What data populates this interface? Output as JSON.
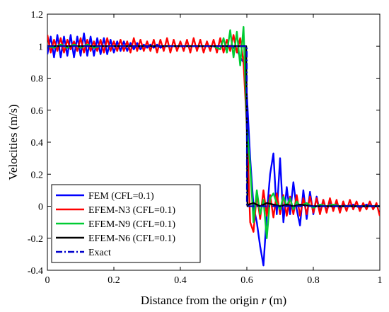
{
  "chart_data": {
    "type": "line",
    "xlabel": "Distance from the origin",
    "xlabel_var": "r",
    "xlabel_unit": "(m)",
    "ylabel": "Velocities (m/s)",
    "xlim": [
      0,
      1
    ],
    "ylim": [
      -0.4,
      1.2
    ],
    "xticks": [
      0,
      0.2,
      0.4,
      0.6,
      0.8,
      1
    ],
    "yticks": [
      -0.4,
      -0.2,
      0,
      0.2,
      0.4,
      0.6,
      0.8,
      1,
      1.2
    ],
    "x_tick_labels": [
      "0",
      "0.2",
      "0.4",
      "0.6",
      "0.8",
      "1"
    ],
    "y_tick_labels": [
      "-0.4",
      "-0.2",
      "0",
      "0.2",
      "0.4",
      "0.6",
      "0.8",
      "1",
      "1.2"
    ],
    "grid": false,
    "legend_position": "bottom-left",
    "series": [
      {
        "name": "FEM (CFL=0.1)",
        "color": "#0000ff",
        "dash": "solid",
        "x": [
          0,
          0.01,
          0.02,
          0.03,
          0.04,
          0.05,
          0.06,
          0.07,
          0.08,
          0.09,
          0.1,
          0.11,
          0.12,
          0.13,
          0.14,
          0.15,
          0.16,
          0.17,
          0.18,
          0.19,
          0.2,
          0.21,
          0.22,
          0.23,
          0.24,
          0.25,
          0.26,
          0.27,
          0.28,
          0.29,
          0.3,
          0.31,
          0.32,
          0.33,
          0.34,
          0.35,
          0.36,
          0.37,
          0.38,
          0.39,
          0.4,
          0.41,
          0.42,
          0.43,
          0.44,
          0.45,
          0.46,
          0.47,
          0.48,
          0.49,
          0.5,
          0.51,
          0.52,
          0.53,
          0.54,
          0.55,
          0.56,
          0.57,
          0.58,
          0.59,
          0.6,
          0.61,
          0.62,
          0.63,
          0.64,
          0.65,
          0.66,
          0.67,
          0.68,
          0.69,
          0.7,
          0.71,
          0.72,
          0.73,
          0.74,
          0.75,
          0.76,
          0.77,
          0.78,
          0.79,
          0.8,
          0.81,
          0.82,
          0.83,
          0.84,
          0.85,
          0.86,
          0.87,
          0.88,
          0.89,
          0.9,
          0.92,
          0.94,
          0.96,
          0.98,
          1
        ],
        "y": [
          0.95,
          1.06,
          0.93,
          1.07,
          0.93,
          1.06,
          0.94,
          1.07,
          0.93,
          1.06,
          0.94,
          1.08,
          0.94,
          1.06,
          0.94,
          1.05,
          0.95,
          1.05,
          0.95,
          1.04,
          0.96,
          1.03,
          0.97,
          1.03,
          0.97,
          1.02,
          0.98,
          1.02,
          0.98,
          1.01,
          0.99,
          1.01,
          0.99,
          1.01,
          0.99,
          1.0,
          1.0,
          1.0,
          1.0,
          1.0,
          1.0,
          1.0,
          1.0,
          1.0,
          1.0,
          1.0,
          1.0,
          1.0,
          1.0,
          1.0,
          1.0,
          1.0,
          1.0,
          1.0,
          1.0,
          1.0,
          0.99,
          0.98,
          0.93,
          0.9,
          0.7,
          0.3,
          0.0,
          -0.1,
          -0.25,
          -0.37,
          -0.05,
          0.2,
          0.33,
          -0.05,
          0.3,
          -0.1,
          0.12,
          -0.05,
          0.15,
          -0.02,
          -0.12,
          0.1,
          -0.08,
          0.09,
          -0.05,
          0.06,
          -0.04,
          0.04,
          -0.03,
          0.03,
          -0.02,
          0.02,
          -0.01,
          0.01,
          0.0,
          0.01,
          -0.01,
          0.01,
          0.0,
          0.0
        ]
      },
      {
        "name": "EFEM-N3 (CFL=0.1)",
        "color": "#ff0000",
        "dash": "solid",
        "x": [
          0,
          0.01,
          0.02,
          0.03,
          0.04,
          0.05,
          0.06,
          0.07,
          0.08,
          0.09,
          0.1,
          0.11,
          0.12,
          0.13,
          0.14,
          0.15,
          0.16,
          0.17,
          0.18,
          0.19,
          0.2,
          0.21,
          0.22,
          0.23,
          0.24,
          0.25,
          0.26,
          0.27,
          0.28,
          0.29,
          0.3,
          0.31,
          0.32,
          0.33,
          0.34,
          0.35,
          0.36,
          0.37,
          0.38,
          0.39,
          0.4,
          0.41,
          0.42,
          0.43,
          0.44,
          0.45,
          0.46,
          0.47,
          0.48,
          0.49,
          0.5,
          0.51,
          0.52,
          0.53,
          0.54,
          0.55,
          0.56,
          0.57,
          0.58,
          0.59,
          0.6,
          0.61,
          0.62,
          0.63,
          0.64,
          0.65,
          0.66,
          0.67,
          0.68,
          0.69,
          0.7,
          0.71,
          0.72,
          0.73,
          0.74,
          0.75,
          0.76,
          0.77,
          0.78,
          0.79,
          0.8,
          0.81,
          0.82,
          0.83,
          0.84,
          0.85,
          0.86,
          0.87,
          0.88,
          0.89,
          0.9,
          0.91,
          0.92,
          0.93,
          0.94,
          0.95,
          0.96,
          0.97,
          0.98,
          0.99,
          1
        ],
        "y": [
          1.07,
          0.96,
          1.04,
          0.97,
          1.05,
          0.96,
          1.04,
          0.98,
          1.03,
          0.97,
          1.05,
          0.96,
          1.04,
          0.97,
          1.03,
          0.97,
          1.04,
          0.96,
          1.05,
          0.97,
          1.03,
          0.97,
          1.04,
          0.97,
          1.03,
          0.96,
          1.05,
          0.97,
          1.04,
          0.97,
          1.03,
          0.97,
          1.04,
          0.96,
          1.04,
          0.97,
          1.05,
          0.96,
          1.04,
          0.97,
          1.03,
          0.97,
          1.04,
          0.96,
          1.05,
          0.97,
          1.04,
          0.96,
          1.03,
          0.97,
          1.04,
          0.96,
          1.05,
          0.96,
          1.04,
          0.97,
          1.07,
          0.96,
          1.05,
          0.9,
          0.5,
          -0.1,
          -0.16,
          0.08,
          -0.08,
          0.1,
          -0.06,
          0.07,
          -0.07,
          0.08,
          -0.05,
          0.07,
          -0.06,
          0.06,
          -0.05,
          0.07,
          -0.06,
          0.05,
          -0.05,
          0.06,
          -0.04,
          0.05,
          -0.05,
          0.04,
          -0.04,
          0.05,
          -0.03,
          0.04,
          -0.04,
          0.03,
          -0.03,
          0.04,
          -0.02,
          0.03,
          -0.03,
          0.02,
          -0.02,
          0.03,
          -0.02,
          0.02,
          -0.06
        ]
      },
      {
        "name": "EFEM-N9 (CFL=0.1)",
        "color": "#00cc33",
        "dash": "solid",
        "x": [
          0,
          0.02,
          0.04,
          0.06,
          0.08,
          0.1,
          0.12,
          0.14,
          0.16,
          0.18,
          0.2,
          0.22,
          0.24,
          0.26,
          0.28,
          0.3,
          0.32,
          0.34,
          0.36,
          0.38,
          0.4,
          0.42,
          0.44,
          0.46,
          0.48,
          0.5,
          0.52,
          0.53,
          0.54,
          0.55,
          0.56,
          0.57,
          0.58,
          0.59,
          0.6,
          0.61,
          0.62,
          0.63,
          0.64,
          0.65,
          0.66,
          0.67,
          0.68,
          0.69,
          0.7,
          0.71,
          0.72,
          0.73,
          0.74,
          0.75,
          0.76,
          0.78,
          0.8,
          0.82,
          0.84,
          0.86,
          0.88,
          0.9,
          0.92,
          0.94,
          0.96,
          0.98,
          1
        ],
        "y": [
          1.0,
          0.99,
          1.01,
          0.99,
          1.01,
          0.99,
          1.01,
          0.99,
          1.0,
          1.0,
          1.0,
          1.0,
          1.0,
          1.0,
          1.0,
          1.0,
          1.0,
          1.0,
          1.0,
          1.0,
          1.0,
          1.0,
          1.0,
          1.0,
          1.0,
          1.0,
          0.98,
          1.05,
          0.96,
          1.1,
          0.93,
          1.09,
          0.88,
          1.12,
          0.5,
          0.25,
          -0.1,
          0.1,
          -0.05,
          0.04,
          -0.2,
          0.05,
          0.08,
          0.02,
          -0.02,
          0.06,
          0.0,
          0.05,
          -0.02,
          0.03,
          0.0,
          0.02,
          -0.01,
          0.01,
          0.0,
          0.01,
          0.0,
          0.0,
          0.0,
          0.0,
          0.0,
          0.0,
          0.0
        ]
      },
      {
        "name": "EFEM-N6 (CFL=0.1)",
        "color": "#000000",
        "dash": "solid",
        "x": [
          0,
          0.05,
          0.1,
          0.15,
          0.2,
          0.25,
          0.3,
          0.35,
          0.4,
          0.45,
          0.5,
          0.55,
          0.58,
          0.595,
          0.598,
          0.6,
          0.602,
          0.605,
          0.62,
          0.64,
          0.66,
          0.68,
          0.7,
          0.72,
          0.74,
          0.76,
          0.8,
          0.85,
          0.9,
          0.95,
          1
        ],
        "y": [
          1.0,
          1.0,
          1.0,
          1.0,
          1.0,
          1.0,
          1.0,
          1.0,
          1.0,
          1.0,
          1.0,
          1.0,
          1.0,
          1.0,
          1.0,
          0.5,
          0.0,
          0.01,
          0.02,
          0.0,
          0.02,
          0.01,
          0.0,
          0.01,
          0.0,
          0.01,
          0.0,
          0.0,
          0.0,
          0.0,
          0.0
        ]
      },
      {
        "name": "Exact",
        "color": "#0000cc",
        "dash": "dashdot",
        "x": [
          0,
          0.6,
          0.6,
          1
        ],
        "y": [
          1.0,
          1.0,
          0.0,
          0.0
        ]
      }
    ]
  }
}
